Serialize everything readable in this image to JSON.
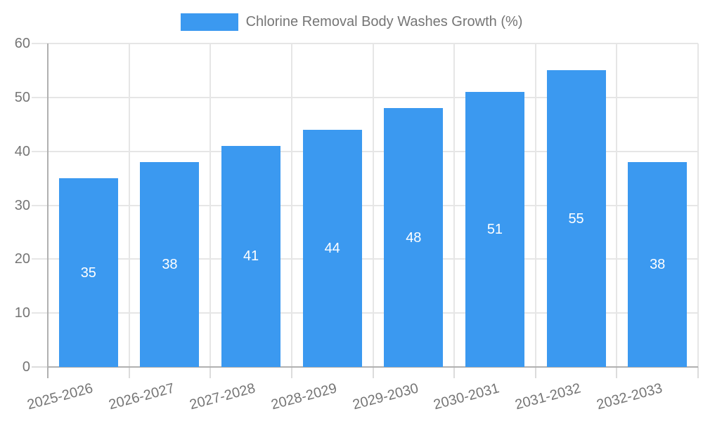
{
  "chart_data": {
    "type": "bar",
    "title": "Chlorine Removal Body Washes Growth (%)",
    "categories": [
      "2025-2026",
      "2026-2027",
      "2027-2028",
      "2028-2029",
      "2029-2030",
      "2030-2031",
      "2031-2032",
      "2032-2033"
    ],
    "series": [
      {
        "name": "Chlorine Removal Body Washes Growth (%)",
        "values": [
          35,
          38,
          41,
          44,
          48,
          51,
          55,
          38
        ]
      }
    ],
    "value_labels": [
      "35",
      "38",
      "41",
      "44",
      "48",
      "51",
      "55",
      "38"
    ],
    "xlabel": "",
    "ylabel": "",
    "ylim": [
      0,
      60
    ],
    "yticks": [
      0,
      10,
      20,
      30,
      40,
      50,
      60
    ],
    "grid": true,
    "legend_position": "top-center",
    "x_label_rotation_deg": -15,
    "colors": {
      "bar": "#3b99f0",
      "value_label": "#ffffff",
      "axis_text": "#757575",
      "legend_text": "#757575",
      "gridline": "#e6e6e6",
      "tick": "#dcdcdc",
      "axis_line": "#b0b0b0",
      "background": "#ffffff"
    }
  }
}
